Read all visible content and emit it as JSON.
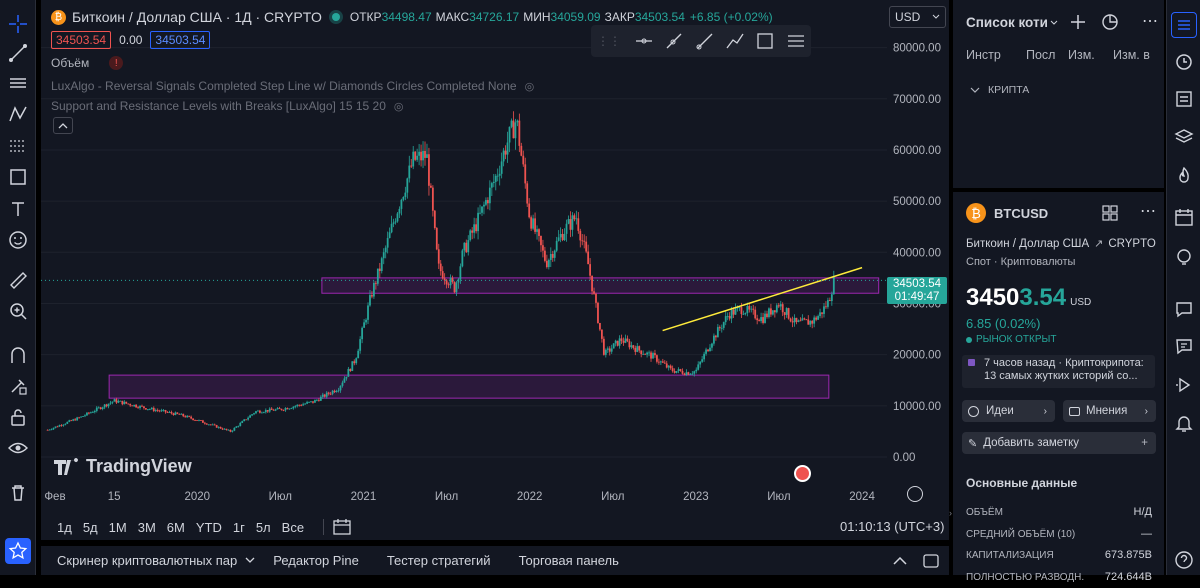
{
  "header": {
    "coin_icon_letter": "₿",
    "symbol_title": "Биткоин / Доллар США · 1Д · CRYPTO",
    "open_label": "ОТКР",
    "open_value": "34498.47",
    "high_label": "МАКС",
    "high_value": "34726.17",
    "low_label": "МИН",
    "low_value": "34059.09",
    "close_label": "ЗАКР",
    "close_value": "34503.54",
    "change_value": "+6.85 (+0.02%)",
    "bid": "34503.54",
    "spread": "0.00",
    "ask": "34503.54",
    "currency": "USD",
    "indicator_volume": "Объём",
    "indicator_1": "LuxAlgo - Reversal Signals Completed Step Line w/ Diamonds Circles Completed None",
    "indicator_2": "Support and Resistance Levels with Breaks [LuxAlgo] 15 15 20"
  },
  "price_axis": [
    "80000.00",
    "70000.00",
    "60000.00",
    "50000.00",
    "40000.00",
    "30000.00",
    "20000.00",
    "10000.00",
    "0.00"
  ],
  "price_label": {
    "price": "34503.54",
    "countdown": "01:49:47"
  },
  "time_axis": [
    "Фев",
    "15",
    "2020",
    "Июл",
    "2021",
    "Июл",
    "2022",
    "Июл",
    "2023",
    "Июл",
    "2024"
  ],
  "watermark": "TradingView",
  "bottom": {
    "timeframes": [
      "1д",
      "5д",
      "1М",
      "3М",
      "6М",
      "YTD",
      "1г",
      "5л",
      "Все"
    ],
    "clock": "01:10:13 (UTC+3)"
  },
  "bottom_tabs": [
    "Скринер криптовалютных пар",
    "Редактор Pine",
    "Тестер стратегий",
    "Торговая панель"
  ],
  "watchlist": {
    "title": "Список коти",
    "columns": [
      "Инстр",
      "Посл",
      "Изм.",
      "Изм. в"
    ],
    "group": "КРИПТА"
  },
  "details": {
    "symbol": "BTCUSD",
    "name": "Биткоин / Доллар США",
    "exchange": "CRYPTO",
    "type": "Спот · Криптовалюты",
    "price_main": "3450",
    "price_tail": "3.54",
    "price_currency": "USD",
    "change": "6.85 (0.02%)",
    "market_status": "РЫНОК ОТКРЫТ",
    "news_time": "7 часов назад · Криптокрипота:",
    "news_text": "13 самых жутких историй со...",
    "ideas_btn": "Идеи",
    "opinions_btn": "Мнения",
    "add_note": "Добавить заметку",
    "fundamentals_title": "Основные данные",
    "rows": [
      {
        "label": "ОБЪЁМ",
        "value": "Н/Д"
      },
      {
        "label": "СРЕДНИЙ ОБЪЁМ (10)",
        "value": "—"
      },
      {
        "label": "КАПИТАЛИЗАЦИЯ",
        "value": "673.875B"
      },
      {
        "label": "ПОЛНОСТЬЮ РАЗВОДН.",
        "value": "724.644B"
      }
    ]
  },
  "colors": {
    "accent": "#2962ff",
    "up": "#26a69a",
    "down": "#ef5350",
    "zone": "#9c27b0",
    "trendline": "#ffeb3b",
    "bitcoin": "#f7931a"
  },
  "chart_data": {
    "type": "candlestick",
    "ylim": [
      0,
      85000
    ],
    "x": [
      2019.1,
      2019.3,
      2019.5,
      2019.7,
      2019.9,
      2020.0,
      2020.2,
      2020.35,
      2020.5,
      2020.7,
      2020.85,
      2020.95,
      2021.05,
      2021.1,
      2021.2,
      2021.3,
      2021.38,
      2021.45,
      2021.55,
      2021.6,
      2021.7,
      2021.8,
      2021.86,
      2021.92,
      2022.0,
      2022.1,
      2022.2,
      2022.28,
      2022.35,
      2022.45,
      2022.55,
      2022.65,
      2022.75,
      2022.85,
      2022.95,
      2023.0,
      2023.1,
      2023.2,
      2023.28,
      2023.4,
      2023.5,
      2023.6,
      2023.7,
      2023.75,
      2023.8,
      2023.83
    ],
    "close": [
      5300,
      7800,
      11000,
      9500,
      8200,
      7200,
      5000,
      8900,
      9300,
      10800,
      13500,
      19000,
      32000,
      37000,
      48000,
      58000,
      59000,
      37000,
      33000,
      40000,
      47000,
      55000,
      61000,
      66000,
      47000,
      38000,
      44000,
      47000,
      38000,
      20000,
      23000,
      21000,
      19500,
      17000,
      16500,
      16800,
      23000,
      28000,
      29000,
      27000,
      30000,
      26000,
      26500,
      28000,
      30500,
      34500
    ],
    "zones": [
      {
        "top": 35000,
        "bottom": 32000,
        "from": 2020.75,
        "to": 2024.1,
        "name": "resistance-zone"
      },
      {
        "top": 16000,
        "bottom": 11500,
        "from": 2019.47,
        "to": 2023.8,
        "name": "support-zone"
      }
    ],
    "trendline": {
      "from": [
        2022.8,
        24700
      ],
      "to": [
        2024.0,
        37000
      ]
    },
    "current_price": 34503.54
  }
}
